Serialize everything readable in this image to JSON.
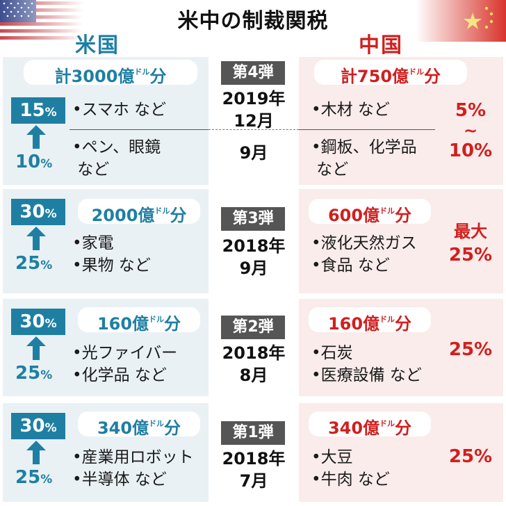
{
  "title": "米中の制裁関税",
  "countries": {
    "us": "米国",
    "cn": "中国"
  },
  "unit": "ドル",
  "colors": {
    "us_blue": "#1f7fa3",
    "cn_red": "#d11f1f",
    "round_gray": "#555555"
  },
  "rounds": [
    {
      "label": "第4弾",
      "date_main": "2019年\n12月",
      "date_second": "9月",
      "us": {
        "total": "計3000億",
        "suffix": "分",
        "rate_high": "15",
        "rate_low": "10",
        "pct": "%",
        "items_top": "•スマホ など",
        "items_bottom": "•ペン、眼鏡\n など"
      },
      "cn": {
        "total": "計750億",
        "suffix": "分",
        "items_top": "•木材 など",
        "items_bottom": "•鋼板、化学品\n など",
        "rate_line1": "5%",
        "rate_line2": "~",
        "rate_line3": "10%"
      }
    },
    {
      "label": "第3弾",
      "date_main": "2018年\n9月",
      "us": {
        "total": "2000億",
        "suffix": "分",
        "rate_high": "30",
        "rate_low": "25",
        "pct": "%",
        "items": "•家電\n•果物 など"
      },
      "cn": {
        "total": "600億",
        "suffix": "分",
        "items": "•液化天然ガス\n•食品 など",
        "rate_line1": "最大",
        "rate_line2": "25%"
      }
    },
    {
      "label": "第2弾",
      "date_main": "2018年\n8月",
      "us": {
        "total": "160億",
        "suffix": "分",
        "rate_high": "30",
        "rate_low": "25",
        "pct": "%",
        "items": "•光ファイバー\n•化学品 など"
      },
      "cn": {
        "total": "160億",
        "suffix": "分",
        "items": "•石炭\n•医療設備 など",
        "rate_line1": "25%"
      }
    },
    {
      "label": "第1弾",
      "date_main": "2018年\n7月",
      "us": {
        "total": "340億",
        "suffix": "分",
        "rate_high": "30",
        "rate_low": "25",
        "pct": "%",
        "items": "•産業用ロボット\n•半導体 など"
      },
      "cn": {
        "total": "340億",
        "suffix": "分",
        "items": "•大豆\n•牛肉 など",
        "rate_line1": "25%"
      }
    }
  ]
}
